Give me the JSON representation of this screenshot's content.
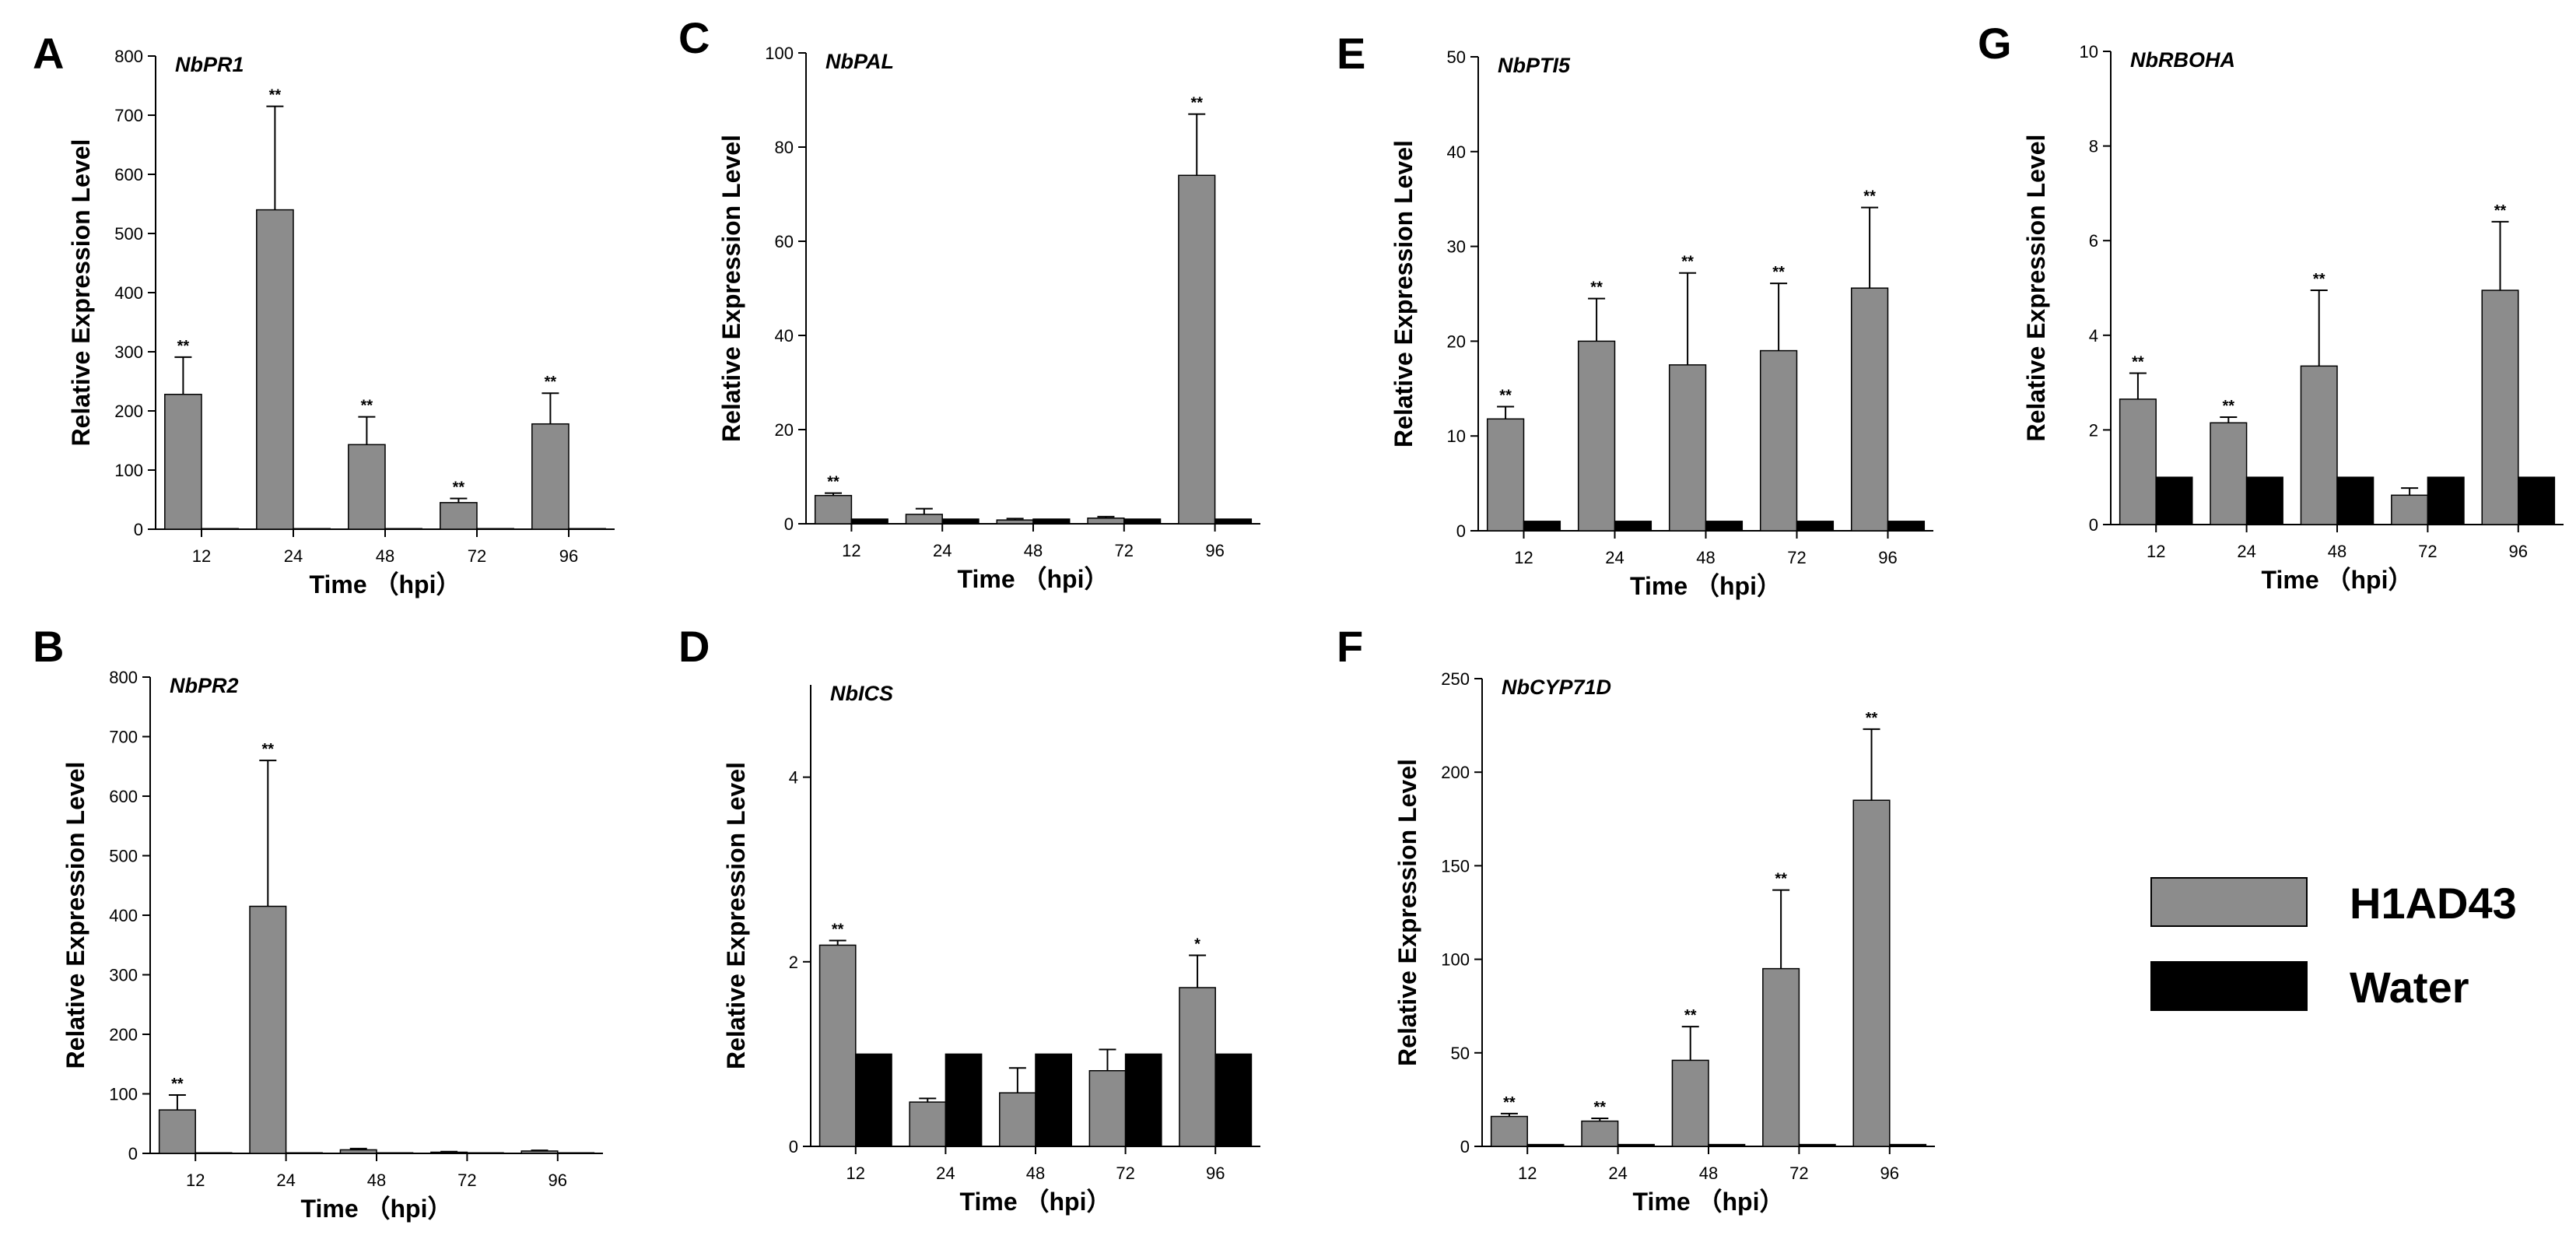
{
  "legend": [
    {
      "label": "H1AD43",
      "color": "#8c8c8c"
    },
    {
      "label": "Water",
      "color": "#000000"
    }
  ],
  "chart_data": [
    {
      "panel": "A",
      "gene": "NbPR1",
      "type": "bar",
      "xlabel": "Time （hpi）",
      "ylabel": "Relative Expression Level",
      "categories": [
        "12",
        "24",
        "48",
        "72",
        "96"
      ],
      "ylim": [
        0,
        800
      ],
      "yticks": [
        0,
        100,
        200,
        300,
        400,
        500,
        600,
        700,
        800
      ],
      "series": [
        {
          "name": "H1AD43",
          "values": [
            228,
            540,
            143,
            45,
            178
          ],
          "errors": [
            63,
            175,
            47,
            7,
            52
          ],
          "sig": [
            "**",
            "**",
            "**",
            "**",
            "**"
          ]
        },
        {
          "name": "Water",
          "values": [
            1,
            1,
            1,
            1,
            1
          ],
          "errors": [
            0,
            0,
            0,
            0,
            0
          ],
          "sig": [
            "",
            "",
            "",
            "",
            ""
          ]
        }
      ]
    },
    {
      "panel": "B",
      "gene": "NbPR2",
      "type": "bar",
      "xlabel": "Time （hpi）",
      "ylabel": "Relative Expression Level",
      "categories": [
        "12",
        "24",
        "48",
        "72",
        "96"
      ],
      "ylim": [
        0,
        800
      ],
      "yticks": [
        0,
        100,
        200,
        300,
        400,
        500,
        600,
        700,
        800
      ],
      "series": [
        {
          "name": "H1AD43",
          "values": [
            73,
            415,
            6,
            2,
            4
          ],
          "errors": [
            25,
            245,
            2,
            1,
            1
          ],
          "sig": [
            "**",
            "**",
            "",
            "",
            ""
          ]
        },
        {
          "name": "Water",
          "values": [
            1,
            1,
            1,
            1,
            1
          ],
          "errors": [
            0,
            0,
            0,
            0,
            0
          ],
          "sig": [
            "",
            "",
            "",
            "",
            ""
          ]
        }
      ]
    },
    {
      "panel": "C",
      "gene": "NbPAL",
      "type": "bar",
      "xlabel": "Time （hpi）",
      "ylabel": "Relative Expression Level",
      "categories": [
        "12",
        "24",
        "48",
        "72",
        "96"
      ],
      "ylim": [
        0,
        100
      ],
      "yticks": [
        0,
        20,
        40,
        60,
        80,
        100
      ],
      "series": [
        {
          "name": "H1AD43",
          "values": [
            6,
            2,
            0.8,
            1.2,
            74
          ],
          "errors": [
            0.5,
            1.2,
            0.3,
            0.3,
            13
          ],
          "sig": [
            "**",
            "",
            "",
            "",
            "**"
          ]
        },
        {
          "name": "Water",
          "values": [
            1,
            1,
            1,
            1,
            1
          ],
          "errors": [
            0,
            0,
            0,
            0,
            0
          ],
          "sig": [
            "",
            "",
            "",
            "",
            ""
          ]
        }
      ]
    },
    {
      "panel": "D",
      "gene": "NbICS",
      "type": "bar",
      "xlabel": "Time （hpi）",
      "ylabel": "Relative Expression Level",
      "categories": [
        "12",
        "24",
        "48",
        "72",
        "96"
      ],
      "ylim": [
        0,
        5
      ],
      "yticks": [
        0,
        2,
        4
      ],
      "series": [
        {
          "name": "H1AD43",
          "values": [
            2.18,
            0.48,
            0.58,
            0.82,
            1.72
          ],
          "errors": [
            0.05,
            0.04,
            0.27,
            0.23,
            0.35
          ],
          "sig": [
            "**",
            "",
            "",
            "",
            "*"
          ]
        },
        {
          "name": "Water",
          "values": [
            1,
            1,
            1,
            1,
            1
          ],
          "errors": [
            0,
            0,
            0,
            0,
            0
          ],
          "sig": [
            "",
            "",
            "",
            "",
            ""
          ]
        }
      ]
    },
    {
      "panel": "E",
      "gene": "NbPTI5",
      "type": "bar",
      "xlabel": "Time （hpi）",
      "ylabel": "Relative Expression Level",
      "categories": [
        "12",
        "24",
        "48",
        "72",
        "96"
      ],
      "ylim": [
        0,
        50
      ],
      "yticks": [
        0,
        10,
        20,
        30,
        40,
        50
      ],
      "series": [
        {
          "name": "H1AD43",
          "values": [
            11.8,
            20,
            17.5,
            19,
            25.6
          ],
          "errors": [
            1.3,
            4.5,
            9.7,
            7.1,
            8.5
          ],
          "sig": [
            "**",
            "**",
            "**",
            "**",
            "**"
          ]
        },
        {
          "name": "Water",
          "values": [
            1,
            1,
            1,
            1,
            1
          ],
          "errors": [
            0,
            0,
            0,
            0,
            0
          ],
          "sig": [
            "",
            "",
            "",
            "",
            ""
          ]
        }
      ]
    },
    {
      "panel": "F",
      "gene": "NbCYP71D",
      "type": "bar",
      "xlabel": "Time （hpi）",
      "ylabel": "Relative Expression Level",
      "categories": [
        "12",
        "24",
        "48",
        "72",
        "96"
      ],
      "ylim": [
        0,
        250
      ],
      "yticks": [
        0,
        50,
        100,
        150,
        200,
        250
      ],
      "series": [
        {
          "name": "H1AD43",
          "values": [
            16,
            13.5,
            46,
            95,
            185
          ],
          "errors": [
            1.5,
            1.5,
            18,
            42,
            38
          ],
          "sig": [
            "**",
            "**",
            "**",
            "**",
            "**"
          ]
        },
        {
          "name": "Water",
          "values": [
            1,
            1,
            1,
            1,
            1
          ],
          "errors": [
            0,
            0,
            0,
            0,
            0
          ],
          "sig": [
            "",
            "",
            "",
            "",
            ""
          ]
        }
      ]
    },
    {
      "panel": "G",
      "gene": "NbRBOHA",
      "type": "bar",
      "xlabel": "Time （hpi）",
      "ylabel": "Relative Expression Level",
      "categories": [
        "12",
        "24",
        "48",
        "72",
        "96"
      ],
      "ylim": [
        0,
        10
      ],
      "yticks": [
        0,
        2,
        4,
        6,
        8,
        10
      ],
      "series": [
        {
          "name": "H1AD43",
          "values": [
            2.65,
            2.15,
            3.35,
            0.62,
            4.95
          ],
          "errors": [
            0.55,
            0.12,
            1.6,
            0.15,
            1.45
          ],
          "sig": [
            "**",
            "**",
            "**",
            "",
            "**"
          ]
        },
        {
          "name": "Water",
          "values": [
            1,
            1,
            1,
            1,
            1
          ],
          "errors": [
            0,
            0,
            0,
            0,
            0
          ],
          "sig": [
            "",
            "",
            "",
            "",
            ""
          ]
        }
      ]
    }
  ]
}
